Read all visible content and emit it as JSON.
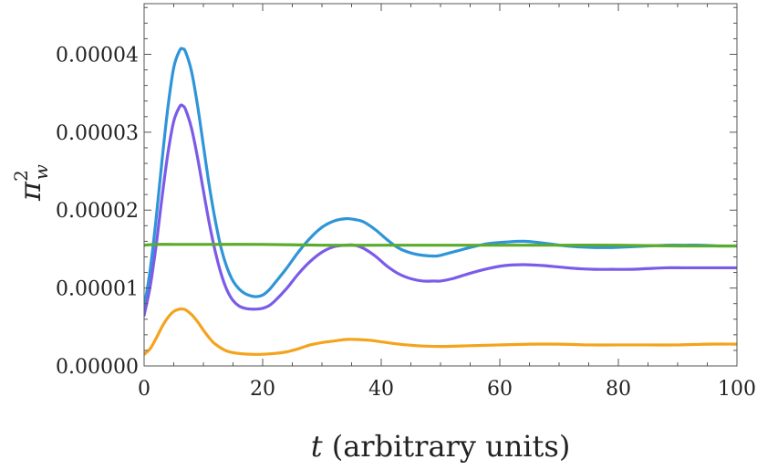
{
  "chart_data": {
    "type": "line",
    "xlabel_var": "t",
    "xlabel_rest": " (arbitrary units)",
    "ylabel_base": "π",
    "ylabel_sup": "2",
    "ylabel_sub": "w",
    "xlim": [
      0,
      100
    ],
    "ylim": [
      0,
      4.65e-05
    ],
    "x_ticks": [
      0,
      20,
      40,
      60,
      80,
      100
    ],
    "x_tick_labels": [
      "0",
      "20",
      "40",
      "60",
      "80",
      "100"
    ],
    "y_ticks": [
      0,
      1e-05,
      2e-05,
      3e-05,
      4e-05
    ],
    "y_tick_labels": [
      "0.00000",
      "0.00001",
      "0.00002",
      "0.00003",
      "0.00004"
    ],
    "grid": false,
    "series": [
      {
        "color": "#2f95d8",
        "x": [
          0,
          1,
          2,
          3,
          4,
          5,
          6,
          6.5,
          7,
          8,
          9,
          10,
          11,
          12,
          13,
          14,
          15,
          16,
          17,
          18,
          19,
          20,
          21,
          22,
          24,
          26,
          28,
          30,
          32,
          34,
          35.5,
          37,
          39,
          41,
          43,
          45,
          47,
          49,
          50,
          52,
          55,
          58,
          61,
          64,
          67,
          70,
          73,
          76,
          79,
          82,
          85,
          88,
          91,
          94,
          97,
          100
        ],
        "y": [
          7.5e-06,
          1.22e-05,
          1.87e-05,
          2.62e-05,
          3.31e-05,
          3.83e-05,
          4.05e-05,
          4.07e-05,
          4.03e-05,
          3.78e-05,
          3.35e-05,
          2.83e-05,
          2.31e-05,
          1.87e-05,
          1.51e-05,
          1.26e-05,
          1.09e-05,
          9.9e-06,
          9.3e-06,
          9e-06,
          8.9e-06,
          9.1e-06,
          9.7e-06,
          1.06e-05,
          1.25e-05,
          1.46e-05,
          1.64e-05,
          1.78e-05,
          1.86e-05,
          1.89e-05,
          1.88e-05,
          1.85e-05,
          1.75e-05,
          1.62e-05,
          1.51e-05,
          1.45e-05,
          1.42e-05,
          1.41e-05,
          1.42e-05,
          1.46e-05,
          1.52e-05,
          1.57e-05,
          1.59e-05,
          1.6e-05,
          1.58e-05,
          1.55e-05,
          1.53e-05,
          1.52e-05,
          1.52e-05,
          1.53e-05,
          1.54e-05,
          1.55e-05,
          1.55e-05,
          1.55e-05,
          1.54e-05,
          1.54e-05
        ]
      },
      {
        "color": "#7b5be8",
        "x": [
          0,
          1,
          2,
          3,
          4,
          5,
          6,
          6.5,
          7,
          8,
          9,
          10,
          11,
          12,
          13,
          14,
          15,
          16,
          17,
          18,
          19,
          20,
          21,
          22,
          24,
          26,
          28,
          30,
          32,
          34,
          35.5,
          37,
          39,
          41,
          43,
          45,
          47,
          49,
          50,
          52,
          55,
          58,
          61,
          64,
          67,
          70,
          73,
          76,
          79,
          82,
          85,
          88,
          91,
          94,
          97,
          100
        ],
        "y": [
          6.5e-06,
          1.01e-05,
          1.53e-05,
          2.15e-05,
          2.72e-05,
          3.14e-05,
          3.33e-05,
          3.34e-05,
          3.29e-05,
          3.05e-05,
          2.68e-05,
          2.25e-05,
          1.83e-05,
          1.47e-05,
          1.18e-05,
          9.7e-06,
          8.4e-06,
          7.7e-06,
          7.4e-06,
          7.3e-06,
          7.3e-06,
          7.4e-06,
          7.7e-06,
          8.3e-06,
          9.9e-06,
          1.18e-05,
          1.34e-05,
          1.46e-05,
          1.53e-05,
          1.55e-05,
          1.55e-05,
          1.51e-05,
          1.41e-05,
          1.28e-05,
          1.18e-05,
          1.12e-05,
          1.09e-05,
          1.09e-05,
          1.09e-05,
          1.12e-05,
          1.19e-05,
          1.25e-05,
          1.29e-05,
          1.3e-05,
          1.29e-05,
          1.27e-05,
          1.25e-05,
          1.24e-05,
          1.24e-05,
          1.24e-05,
          1.25e-05,
          1.26e-05,
          1.26e-05,
          1.26e-05,
          1.26e-05,
          1.26e-05
        ]
      },
      {
        "color": "#5cab2c",
        "x": [
          0,
          2,
          5,
          10,
          20,
          30,
          40,
          50,
          60,
          70,
          80,
          90,
          100
        ],
        "y": [
          1.55e-05,
          1.56e-05,
          1.56e-05,
          1.56e-05,
          1.56e-05,
          1.55e-05,
          1.55e-05,
          1.55e-05,
          1.55e-05,
          1.55e-05,
          1.55e-05,
          1.54e-05,
          1.54e-05
        ]
      },
      {
        "color": "#f4a31c",
        "x": [
          0,
          1,
          2,
          3,
          4,
          5,
          6,
          6.5,
          7,
          8,
          9,
          10,
          11,
          12,
          14,
          16,
          18,
          20,
          22,
          24,
          26,
          28,
          30,
          32,
          34,
          36,
          38,
          40,
          43,
          46,
          50,
          55,
          60,
          65,
          70,
          75,
          80,
          85,
          90,
          95,
          100
        ],
        "y": [
          1.5e-06,
          2.2e-06,
          3.5e-06,
          5e-06,
          6.2e-06,
          7e-06,
          7.3e-06,
          7.3e-06,
          7.2e-06,
          6.6e-06,
          5.7e-06,
          4.6e-06,
          3.6e-06,
          2.8e-06,
          1.9e-06,
          1.6e-06,
          1.5e-06,
          1.5e-06,
          1.6e-06,
          1.8e-06,
          2.2e-06,
          2.7e-06,
          3e-06,
          3.2e-06,
          3.4e-06,
          3.4e-06,
          3.3e-06,
          3.1e-06,
          2.8e-06,
          2.6e-06,
          2.5e-06,
          2.6e-06,
          2.7e-06,
          2.8e-06,
          2.8e-06,
          2.7e-06,
          2.7e-06,
          2.7e-06,
          2.7e-06,
          2.8e-06,
          2.8e-06
        ]
      }
    ]
  }
}
